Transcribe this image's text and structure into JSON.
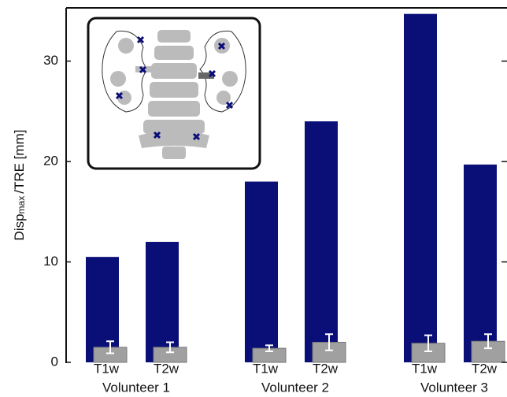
{
  "chart_data": {
    "type": "bar",
    "ylabel": [
      "Disp",
      "max",
      "/TRE [mm]"
    ],
    "categories": [
      "T1w",
      "T2w",
      "T1w",
      "T2w",
      "T1w",
      "T2w"
    ],
    "groups": [
      "Volunteer 1",
      "Volunteer 2",
      "Volunteer 3"
    ],
    "series": [
      {
        "color": "#0a0f78",
        "values": [
          10.5,
          12.0,
          18.0,
          24.0,
          34.7,
          19.7
        ]
      },
      {
        "color": "#a0a0a0",
        "values": [
          1.5,
          1.5,
          1.4,
          2.0,
          1.9,
          2.1
        ],
        "errors": [
          0.6,
          0.5,
          0.3,
          0.8,
          0.8,
          0.7
        ]
      }
    ],
    "ylim": [
      0,
      35.3
    ],
    "yticks": [
      0,
      10,
      20,
      30
    ]
  }
}
